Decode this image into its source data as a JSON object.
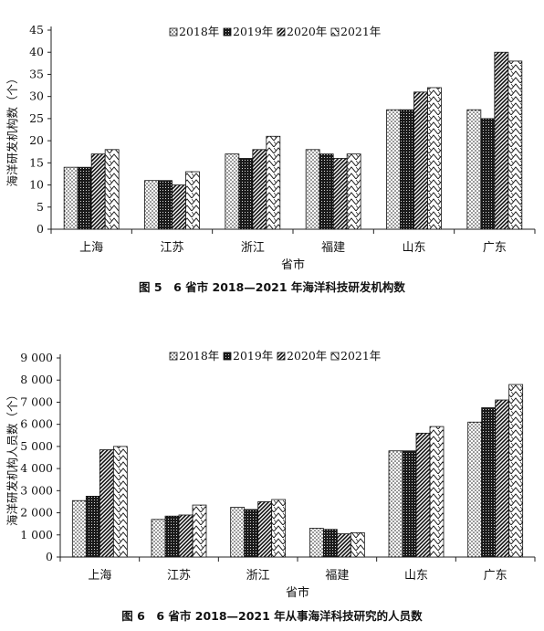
{
  "chart_data": [
    {
      "type": "bar",
      "caption": "图 5　6 省市 2018—2021 年海洋科技研发机构数",
      "xlabel": "省市",
      "ylabel": "海洋研发机构数（个）",
      "categories": [
        "上海",
        "江苏",
        "浙江",
        "福建",
        "山东",
        "广东"
      ],
      "ylim": [
        0,
        45
      ],
      "yticks": [
        0,
        5,
        10,
        15,
        20,
        25,
        30,
        35,
        40,
        45
      ],
      "ytick_labels": [
        "0",
        "5",
        "10",
        "15",
        "20",
        "25",
        "30",
        "35",
        "40",
        "45"
      ],
      "legend_position": "top-center",
      "series": [
        {
          "name": "2018年",
          "pattern": "dots",
          "values": [
            14,
            11,
            17,
            18,
            27,
            27
          ]
        },
        {
          "name": "2019年",
          "pattern": "dark-grid",
          "values": [
            14,
            11,
            16,
            17,
            27,
            25
          ]
        },
        {
          "name": "2020年",
          "pattern": "diagonal-dense",
          "values": [
            17,
            10,
            18,
            16,
            31,
            40
          ]
        },
        {
          "name": "2021年",
          "pattern": "zigzag",
          "values": [
            18,
            13,
            21,
            17,
            32,
            38
          ]
        }
      ]
    },
    {
      "type": "bar",
      "caption": "图 6　6 省市 2018—2021 年从事海洋科技研究的人员数",
      "xlabel": "省市",
      "ylabel": "海洋研发机构人员数（个）",
      "categories": [
        "上海",
        "江苏",
        "浙江",
        "福建",
        "山东",
        "广东"
      ],
      "ylim": [
        0,
        9000
      ],
      "yticks": [
        0,
        1000,
        2000,
        3000,
        4000,
        5000,
        6000,
        7000,
        8000,
        9000
      ],
      "ytick_labels": [
        "0",
        "1 000",
        "2 000",
        "3 000",
        "4 000",
        "5 000",
        "6 000",
        "7 000",
        "8 000",
        "9 000"
      ],
      "legend_position": "top-center",
      "series": [
        {
          "name": "2018年",
          "pattern": "dots",
          "values": [
            2550,
            1700,
            2250,
            1300,
            4800,
            6100
          ]
        },
        {
          "name": "2019年",
          "pattern": "dark-grid",
          "values": [
            2750,
            1850,
            2150,
            1250,
            4800,
            6750
          ]
        },
        {
          "name": "2020年",
          "pattern": "diagonal-dense",
          "values": [
            4850,
            1900,
            2500,
            1050,
            5600,
            7100
          ]
        },
        {
          "name": "2021年",
          "pattern": "zigzag",
          "values": [
            5000,
            2350,
            2600,
            1100,
            5900,
            7800
          ]
        }
      ]
    }
  ]
}
